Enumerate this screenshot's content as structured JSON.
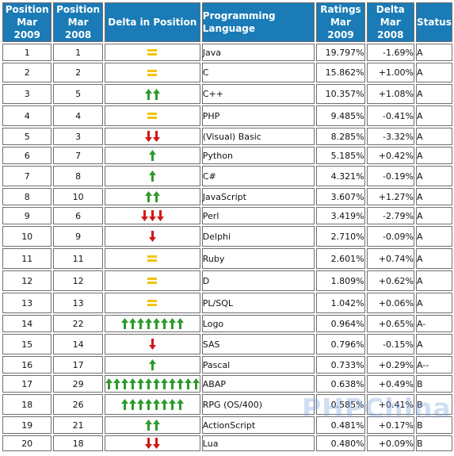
{
  "headers": {
    "pos2009": [
      "Position",
      "Mar 2009"
    ],
    "pos2008": [
      "Position",
      "Mar 2008"
    ],
    "delta_pos": "Delta in Position",
    "language": "Programming Language",
    "ratings": [
      "Ratings",
      "Mar 2009"
    ],
    "delta_rating": [
      "Delta",
      "Mar 2008"
    ],
    "status": "Status"
  },
  "colors": {
    "header_bg": "#1a7bb6",
    "up": "#2e9a2e",
    "down": "#d01818",
    "same": "#f0c400",
    "link": "#1e2a92"
  },
  "rows": [
    {
      "pos2009": "1",
      "pos2008": "1",
      "dir": "same",
      "count": 1,
      "language": "Java",
      "rating": "19.797%",
      "delta": "-1.69%",
      "status": "A"
    },
    {
      "pos2009": "2",
      "pos2008": "2",
      "dir": "same",
      "count": 1,
      "language": "C",
      "rating": "15.862%",
      "delta": "+1.00%",
      "status": "A"
    },
    {
      "pos2009": "3",
      "pos2008": "5",
      "dir": "up",
      "count": 2,
      "language": "C++",
      "rating": "10.357%",
      "delta": "+1.08%",
      "status": "A"
    },
    {
      "pos2009": "4",
      "pos2008": "4",
      "dir": "same",
      "count": 1,
      "language": "PHP",
      "rating": "9.485%",
      "delta": "-0.41%",
      "status": "A"
    },
    {
      "pos2009": "5",
      "pos2008": "3",
      "dir": "down",
      "count": 2,
      "language": "(Visual) Basic",
      "rating": "8.285%",
      "delta": "-3.32%",
      "status": "A"
    },
    {
      "pos2009": "6",
      "pos2008": "7",
      "dir": "up",
      "count": 1,
      "language": "Python",
      "rating": "5.185%",
      "delta": "+0.42%",
      "status": "A"
    },
    {
      "pos2009": "7",
      "pos2008": "8",
      "dir": "up",
      "count": 1,
      "language": "C#",
      "rating": "4.321%",
      "delta": "-0.19%",
      "status": "A"
    },
    {
      "pos2009": "8",
      "pos2008": "10",
      "dir": "up",
      "count": 2,
      "language": "JavaScript",
      "rating": "3.607%",
      "delta": "+1.27%",
      "status": "A"
    },
    {
      "pos2009": "9",
      "pos2008": "6",
      "dir": "down",
      "count": 3,
      "language": "Perl",
      "rating": "3.419%",
      "delta": "-2.79%",
      "status": "A"
    },
    {
      "pos2009": "10",
      "pos2008": "9",
      "dir": "down",
      "count": 1,
      "language": "Delphi",
      "rating": "2.710%",
      "delta": "-0.09%",
      "status": "A"
    },
    {
      "pos2009": "11",
      "pos2008": "11",
      "dir": "same",
      "count": 1,
      "language": "Ruby",
      "rating": "2.601%",
      "delta": "+0.74%",
      "status": "A"
    },
    {
      "pos2009": "12",
      "pos2008": "12",
      "dir": "same",
      "count": 1,
      "language": "D",
      "rating": "1.809%",
      "delta": "+0.62%",
      "status": "A"
    },
    {
      "pos2009": "13",
      "pos2008": "13",
      "dir": "same",
      "count": 1,
      "language": "PL/SQL",
      "rating": "1.042%",
      "delta": "+0.06%",
      "status": "A"
    },
    {
      "pos2009": "14",
      "pos2008": "22",
      "dir": "up",
      "count": 8,
      "language": "Logo",
      "rating": "0.964%",
      "delta": "+0.65%",
      "status": "A-"
    },
    {
      "pos2009": "15",
      "pos2008": "14",
      "dir": "down",
      "count": 1,
      "language": "SAS",
      "rating": "0.796%",
      "delta": "-0.15%",
      "status": "A"
    },
    {
      "pos2009": "16",
      "pos2008": "17",
      "dir": "up",
      "count": 1,
      "language": "Pascal",
      "rating": "0.733%",
      "delta": "+0.29%",
      "status": "A--"
    },
    {
      "pos2009": "17",
      "pos2008": "29",
      "dir": "up",
      "count": 12,
      "language": "ABAP",
      "rating": "0.638%",
      "delta": "+0.49%",
      "status": "B"
    },
    {
      "pos2009": "18",
      "pos2008": "26",
      "dir": "up",
      "count": 8,
      "language": "RPG (OS/400)",
      "rating": "0.585%",
      "delta": "+0.41%",
      "status": "B"
    },
    {
      "pos2009": "19",
      "pos2008": "21",
      "dir": "up",
      "count": 2,
      "language": "ActionScript",
      "rating": "0.481%",
      "delta": "+0.17%",
      "status": "B"
    },
    {
      "pos2009": "20",
      "pos2008": "18",
      "dir": "down",
      "count": 2,
      "language": "Lua",
      "rating": "0.480%",
      "delta": "+0.09%",
      "status": "B"
    }
  ],
  "watermark": "PHPChina"
}
